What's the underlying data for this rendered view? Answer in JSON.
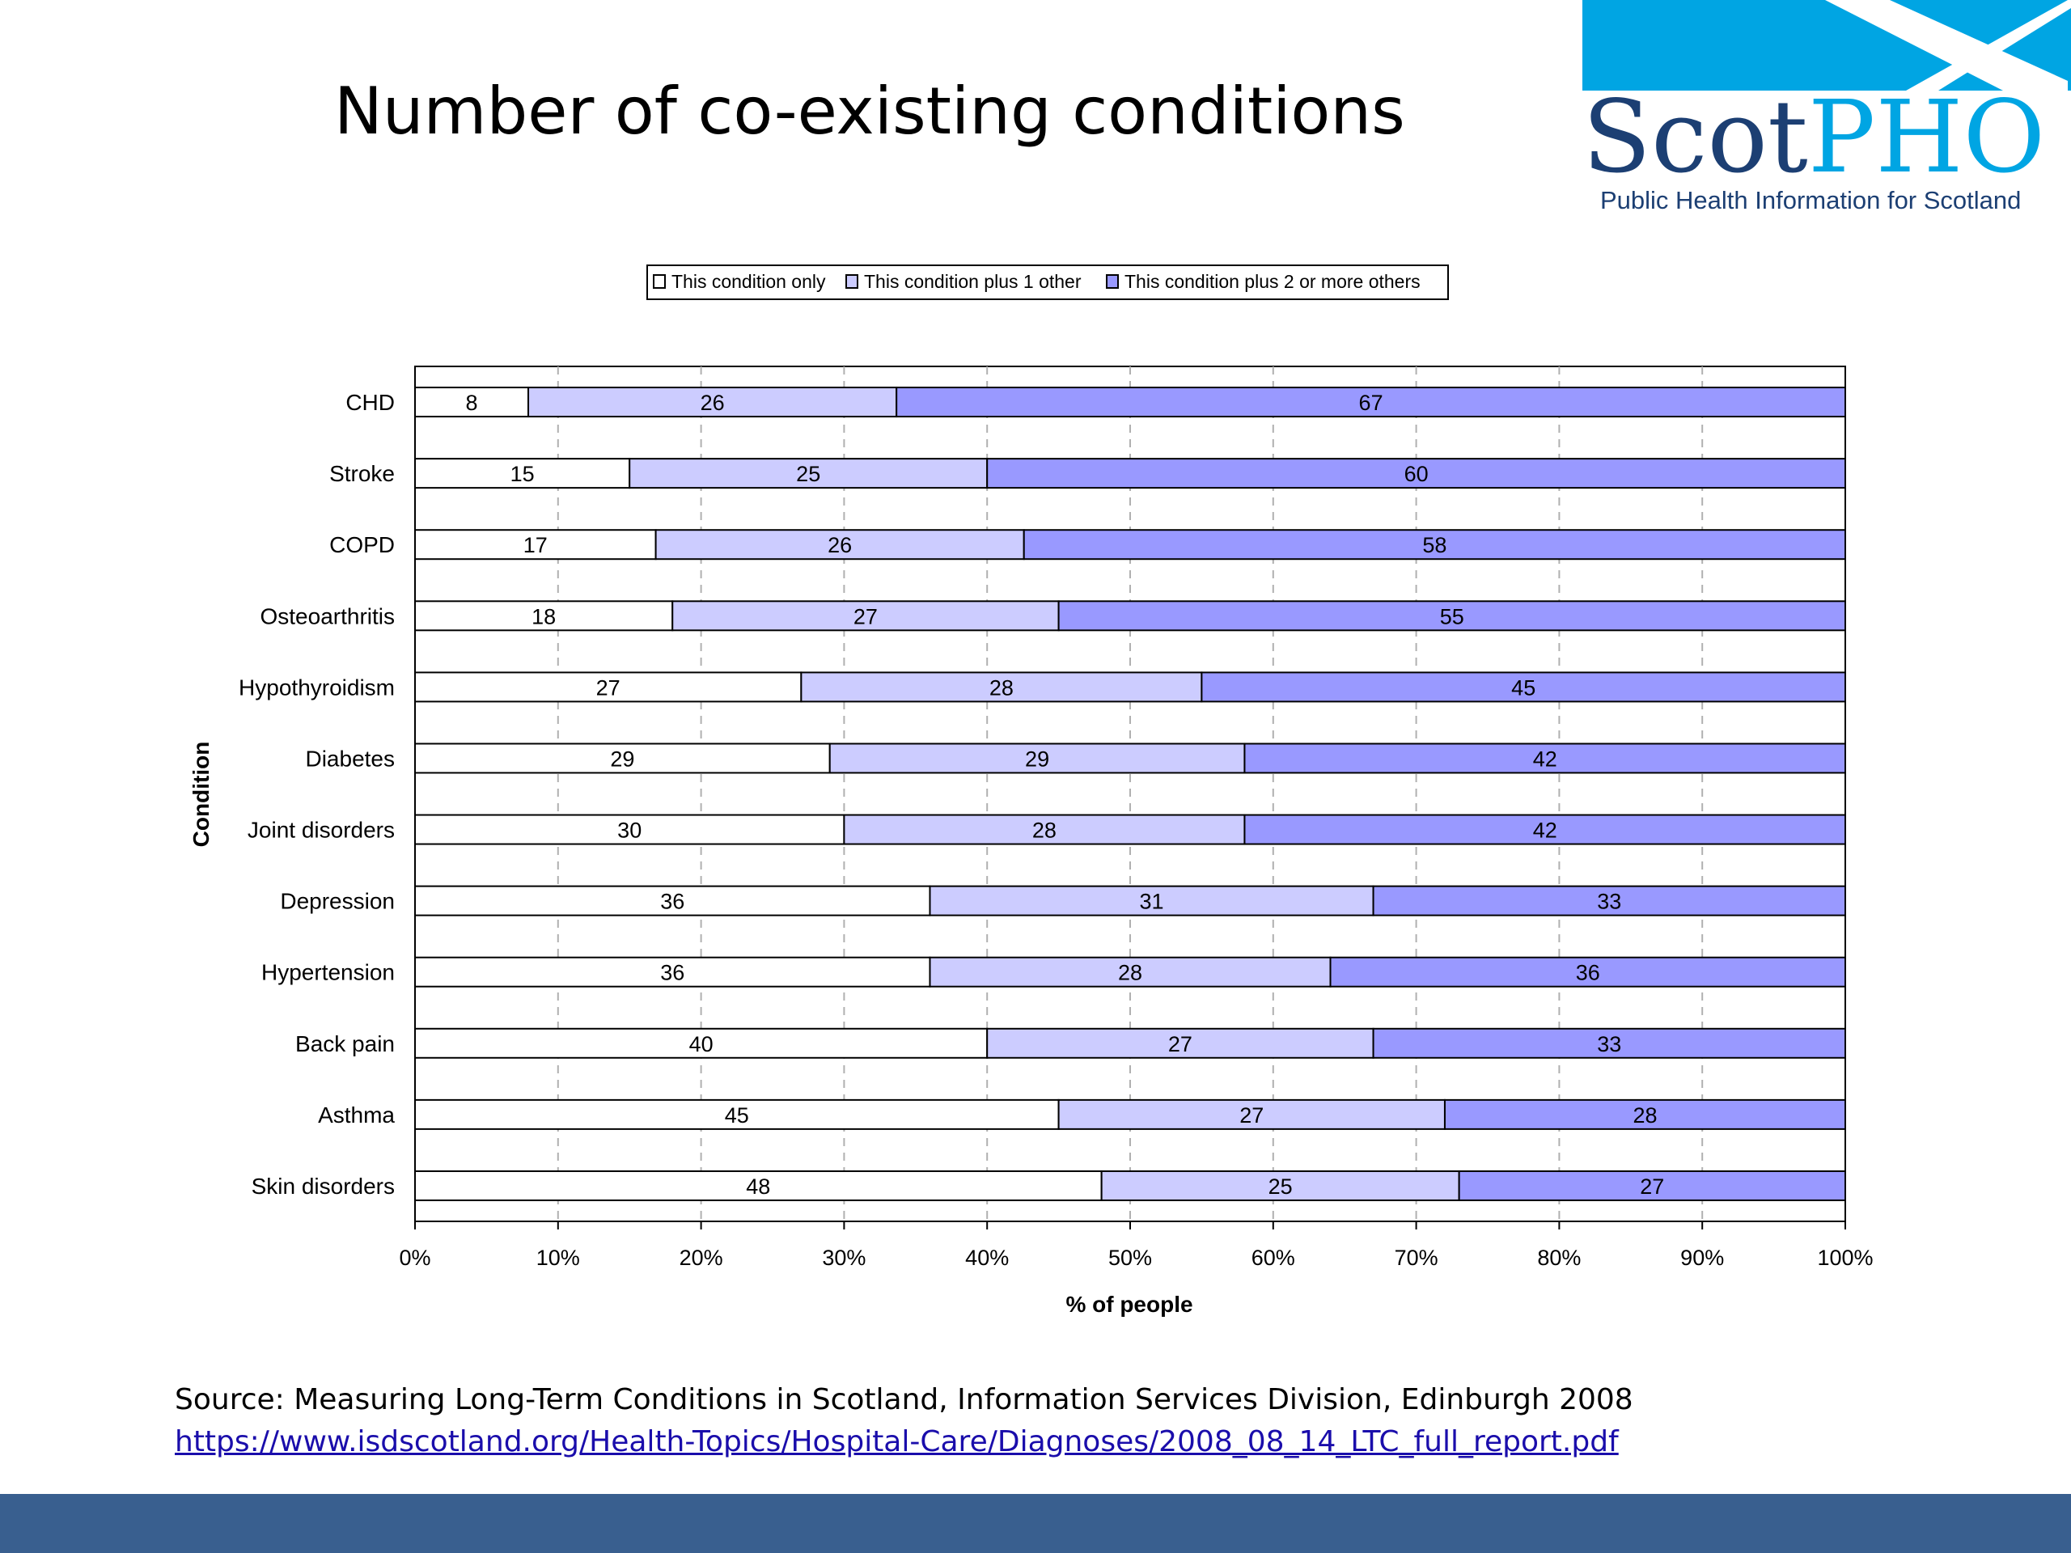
{
  "slide": {
    "title": "Number of co-existing conditions",
    "source": "Source: Measuring Long-Term Conditions in Scotland, Information Services Division, Edinburgh 2008",
    "link": "https://www.isdscotland.org/Health-Topics/Hospital-Care/Diagnoses/2008_08_14_LTC_full_report.pdf"
  },
  "logo": {
    "text_dark": "Scot",
    "text_light": "PHO",
    "tagline": "Public Health Information for Scotland",
    "colors": {
      "banner": "#00a5e3",
      "dark": "#1c3f73",
      "light": "#00a5e3"
    }
  },
  "footer": {
    "color": "#395f8f"
  },
  "chart_data": {
    "type": "bar",
    "orientation": "horizontal",
    "stacked": true,
    "categories": [
      "CHD",
      "Stroke",
      "COPD",
      "Osteoarthritis",
      "Hypothyroidism",
      "Diabetes",
      "Joint disorders",
      "Depression",
      "Hypertension",
      "Back pain",
      "Asthma",
      "Skin disorders"
    ],
    "series": [
      {
        "name": "This condition only",
        "color": "#ffffff",
        "values": [
          8,
          15,
          17,
          18,
          27,
          29,
          30,
          36,
          36,
          40,
          45,
          48
        ]
      },
      {
        "name": "This condition plus 1 other",
        "color": "#ccccff",
        "values": [
          26,
          25,
          26,
          27,
          28,
          29,
          28,
          31,
          28,
          27,
          27,
          25
        ]
      },
      {
        "name": "This condition plus 2 or more others",
        "color": "#9999ff",
        "values": [
          67,
          60,
          58,
          55,
          45,
          42,
          42,
          33,
          36,
          33,
          28,
          27
        ]
      }
    ],
    "xlabel": "% of people",
    "ylabel": "Condition",
    "xlim": [
      0,
      100
    ],
    "xticks": [
      "0%",
      "10%",
      "20%",
      "30%",
      "40%",
      "50%",
      "60%",
      "70%",
      "80%",
      "90%",
      "100%"
    ],
    "grid": "vertical dashed",
    "legend_position": "top"
  }
}
